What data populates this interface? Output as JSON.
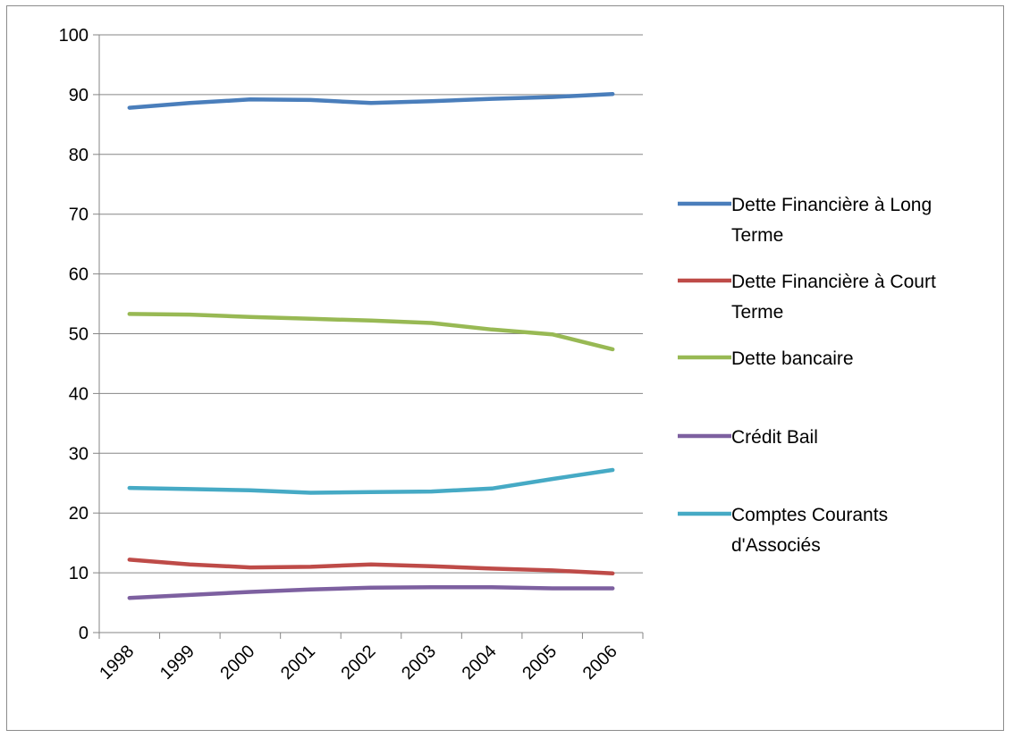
{
  "chart_data": {
    "type": "line",
    "title": "",
    "xlabel": "",
    "ylabel": "",
    "categories": [
      "1998",
      "1999",
      "2000",
      "2001",
      "2002",
      "2003",
      "2004",
      "2005",
      "2006"
    ],
    "ylim": [
      0,
      100
    ],
    "yticks": [
      0,
      10,
      20,
      30,
      40,
      50,
      60,
      70,
      80,
      90,
      100
    ],
    "grid": true,
    "legend_position": "right",
    "series": [
      {
        "name": "Dette Financière à Long Terme",
        "legend_lines": [
          "Dette Financière à Long",
          "Terme"
        ],
        "color": "#4a7ebb",
        "values": [
          87.8,
          88.6,
          89.2,
          89.1,
          88.6,
          88.9,
          89.3,
          89.6,
          90.1
        ]
      },
      {
        "name": "Dette Financière à Court Terme",
        "legend_lines": [
          "Dette Financière à Court",
          "Terme"
        ],
        "color": "#be4b48",
        "values": [
          12.2,
          11.4,
          10.9,
          11.0,
          11.4,
          11.1,
          10.7,
          10.4,
          9.9
        ]
      },
      {
        "name": "Dette bancaire",
        "legend_lines": [
          "Dette bancaire"
        ],
        "color": "#98b954",
        "values": [
          53.3,
          53.2,
          52.8,
          52.5,
          52.2,
          51.8,
          50.7,
          49.9,
          47.4
        ]
      },
      {
        "name": "Crédit Bail",
        "legend_lines": [
          "Crédit Bail"
        ],
        "color": "#7d60a0",
        "values": [
          5.8,
          6.3,
          6.8,
          7.2,
          7.5,
          7.6,
          7.6,
          7.4,
          7.4
        ]
      },
      {
        "name": "Comptes Courants d'Associés",
        "legend_lines": [
          "Comptes Courants",
          "d'Associés"
        ],
        "color": "#46aac5",
        "values": [
          24.2,
          24.0,
          23.8,
          23.4,
          23.5,
          23.6,
          24.1,
          25.7,
          27.2
        ]
      }
    ]
  }
}
